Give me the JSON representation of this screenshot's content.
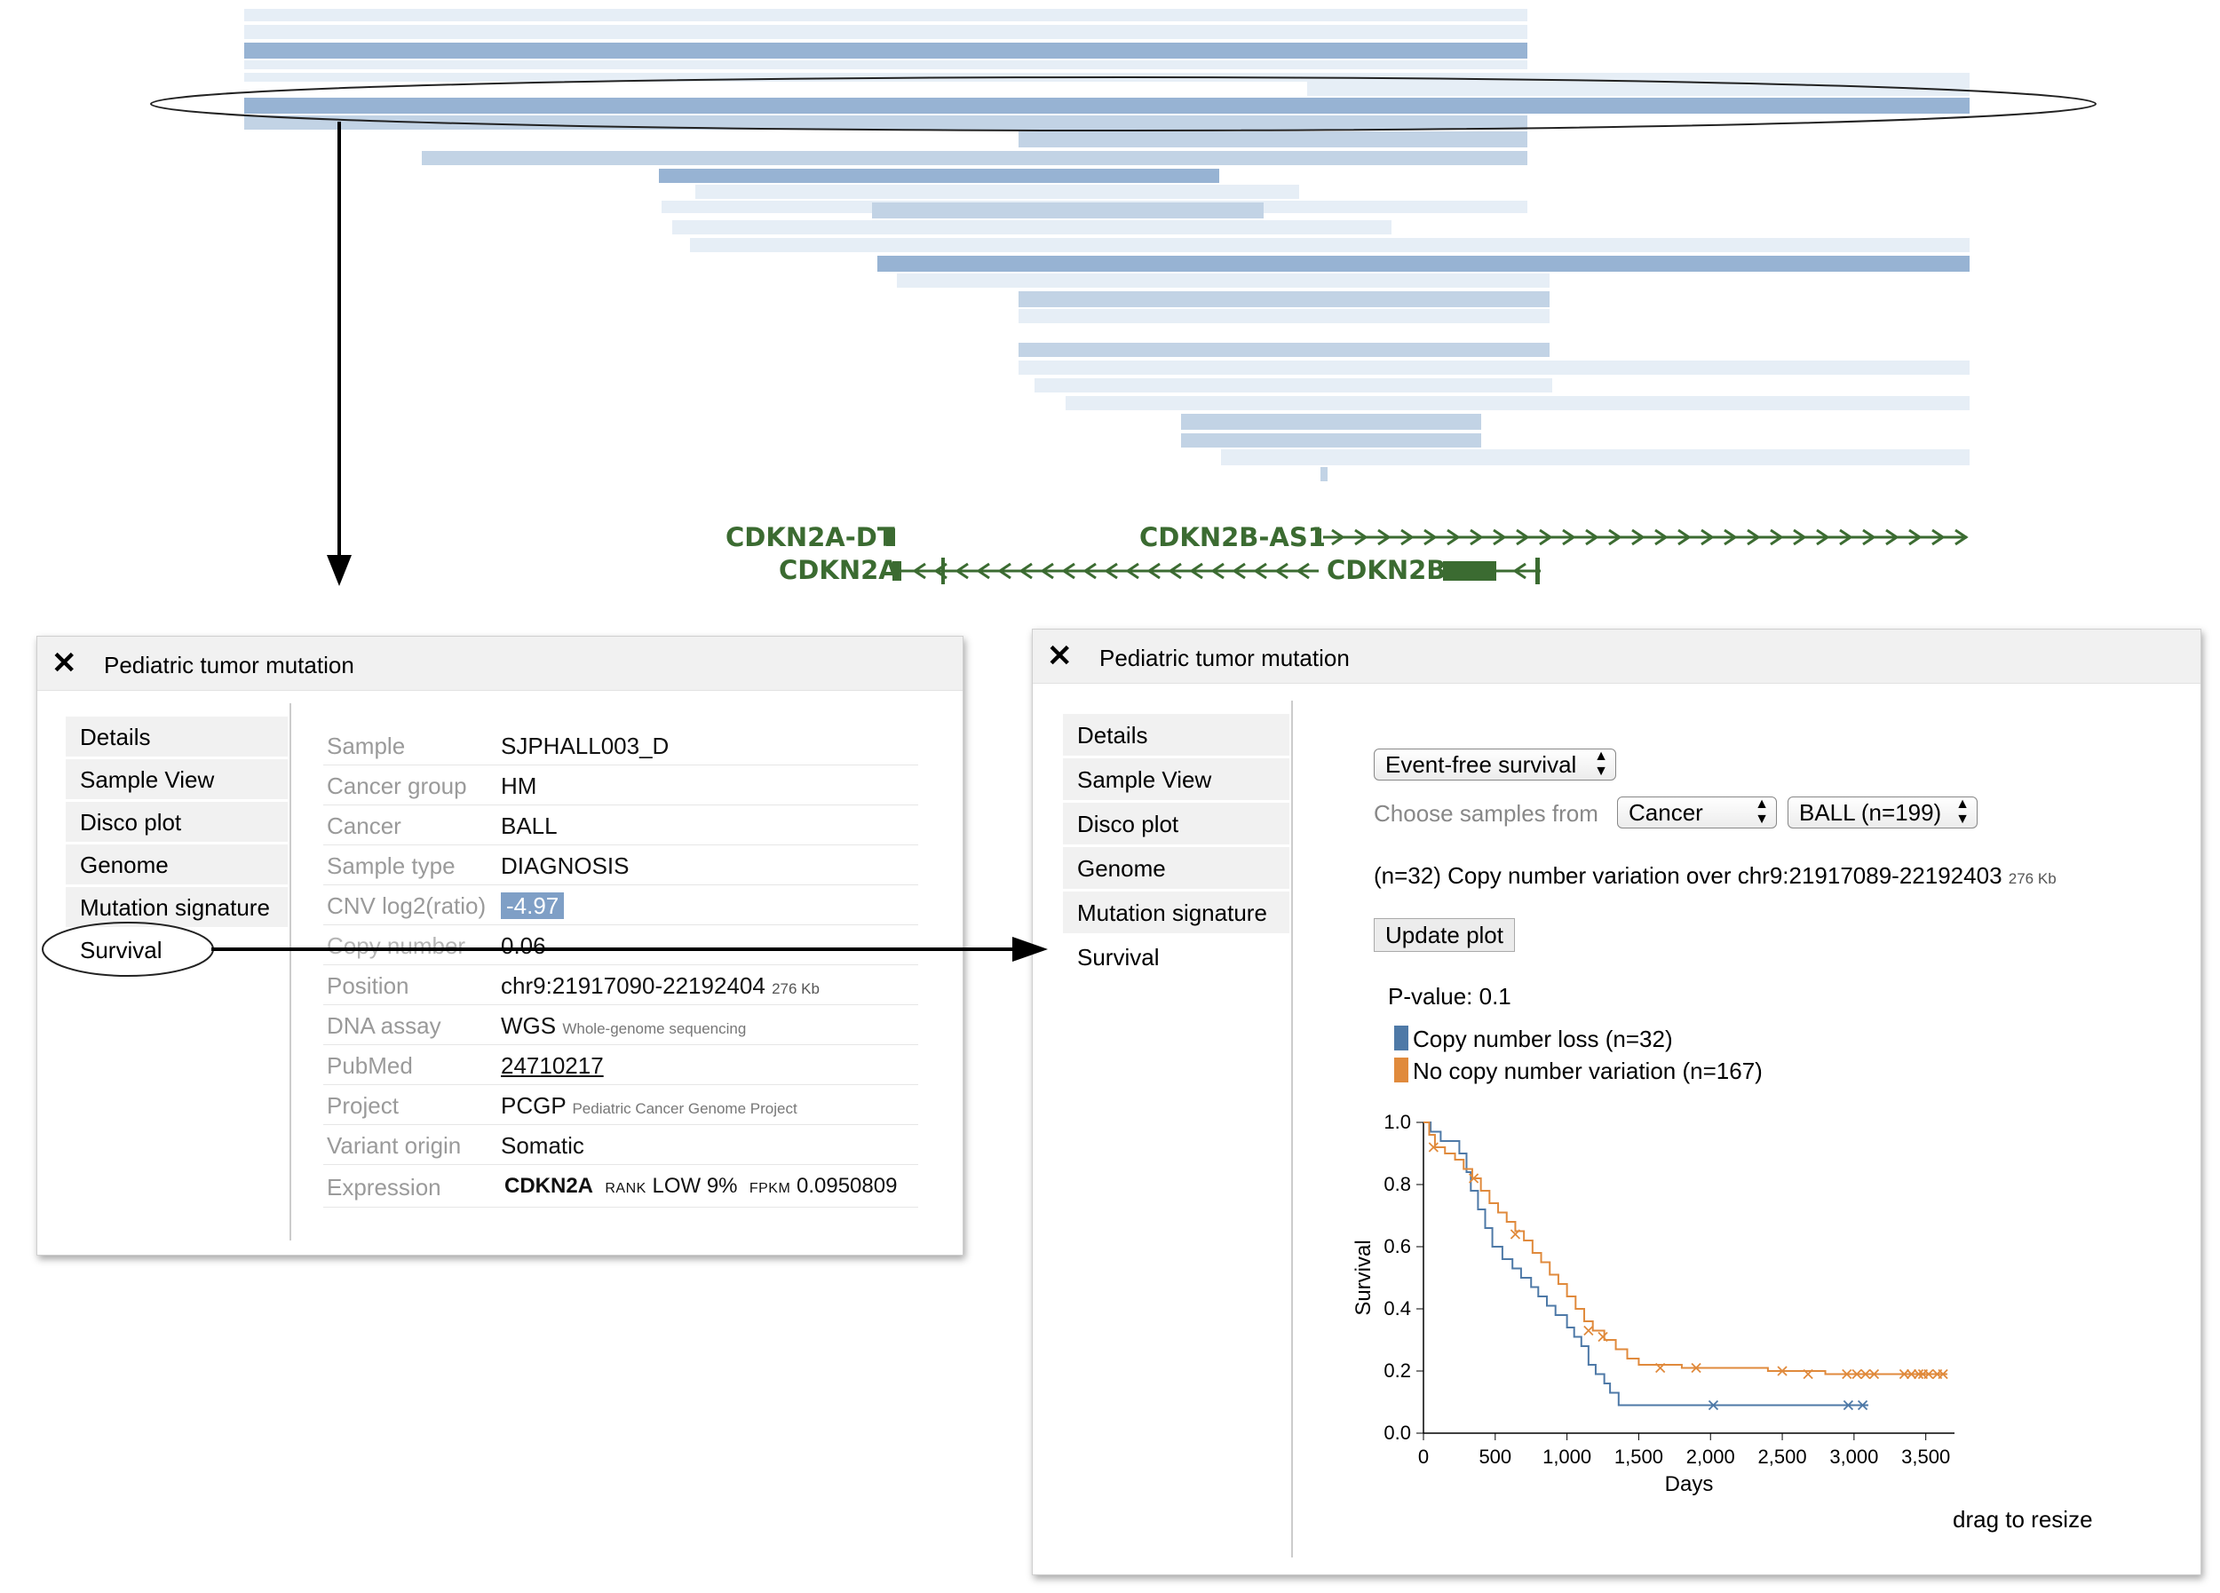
{
  "genes": {
    "cdkn2a_dt": "CDKN2A-DT",
    "cdkn2b_as1": "CDKN2B-AS1",
    "cdkn2a": "CDKN2A",
    "cdkn2b": "CDKN2B"
  },
  "colors": {
    "track_dark": "#97b3d3",
    "track_mid": "#c2d3e5",
    "track_light": "#e6eef6",
    "gene_green": "#3b6b31",
    "copy_number_loss": "#4e79a7",
    "no_cnv": "#e08a3c",
    "cnv_highlight": "#7f9fc6"
  },
  "left_panel": {
    "title": "Pediatric tumor mutation",
    "close_label": "✕",
    "tabs": [
      "Details",
      "Sample View",
      "Disco plot",
      "Genome",
      "Mutation signature",
      "Survival"
    ],
    "details": {
      "sample": {
        "label": "Sample",
        "value": "SJPHALL003_D"
      },
      "cancer_group": {
        "label": "Cancer group",
        "value": "HM"
      },
      "cancer": {
        "label": "Cancer",
        "value": "BALL"
      },
      "sample_type": {
        "label": "Sample type",
        "value": "DIAGNOSIS"
      },
      "cnv": {
        "label": "CNV log2(ratio)",
        "value": "-4.97"
      },
      "copy_number": {
        "label": "Copy number",
        "value": "0.06"
      },
      "position": {
        "label": "Position",
        "value": "chr9:21917090-22192404",
        "size": "276 Kb"
      },
      "dna_assay": {
        "label": "DNA assay",
        "value": "WGS",
        "note": "Whole-genome sequencing"
      },
      "pubmed": {
        "label": "PubMed",
        "value": "24710217"
      },
      "project": {
        "label": "Project",
        "value": "PCGP",
        "note": "Pediatric Cancer Genome Project"
      },
      "variant_origin": {
        "label": "Variant origin",
        "value": "Somatic"
      },
      "expression": {
        "label": "Expression",
        "gene": "CDKN2A",
        "rank_label": "RANK",
        "rank_value": "LOW 9%",
        "fpkm_label": "FPKM",
        "fpkm_value": "0.0950809"
      }
    }
  },
  "right_panel": {
    "title": "Pediatric tumor mutation",
    "close_label": "✕",
    "tabs": [
      "Details",
      "Sample View",
      "Disco plot",
      "Genome",
      "Mutation signature",
      "Survival"
    ],
    "survival_select": "Event-free survival",
    "choose_label": "Choose samples from",
    "cancer_select": "Cancer",
    "ball_select": "BALL (n=199)",
    "cnv_text": "(n=32) Copy number variation over chr9:21917089-22192403",
    "cnv_size": "276 Kb",
    "update_button": "Update plot",
    "pvalue": "P-value: 0.1",
    "legend": [
      {
        "label": "Copy number loss (n=32)",
        "color": "#4e79a7"
      },
      {
        "label": "No copy number variation (n=167)",
        "color": "#e08a3c"
      }
    ],
    "drag_resize": "drag to resize"
  },
  "chart_data": {
    "type": "line",
    "xlabel": "Days",
    "ylabel": "Survival",
    "xlim": [
      0,
      3700
    ],
    "ylim": [
      0,
      1.0
    ],
    "x_ticks": [
      0,
      500,
      1000,
      1500,
      2000,
      2500,
      3000,
      3500
    ],
    "x_tick_labels": [
      "0",
      "500",
      "1,000",
      "1,500",
      "2,000",
      "2,500",
      "3,000",
      "3,500"
    ],
    "y_ticks": [
      0.0,
      0.2,
      0.4,
      0.6,
      0.8,
      1.0
    ],
    "y_tick_labels": [
      "0.0",
      "0.2",
      "0.4",
      "0.6",
      "0.8",
      "1.0"
    ],
    "series": [
      {
        "name": "Copy number loss (n=32)",
        "color": "#4e79a7",
        "step_x": [
          0,
          50,
          120,
          250,
          300,
          330,
          380,
          430,
          480,
          550,
          620,
          680,
          750,
          800,
          860,
          920,
          1000,
          1050,
          1100,
          1150,
          1200,
          1260,
          1300,
          1360,
          3100
        ],
        "step_y": [
          1.0,
          0.97,
          0.94,
          0.9,
          0.84,
          0.78,
          0.72,
          0.66,
          0.6,
          0.56,
          0.53,
          0.5,
          0.47,
          0.44,
          0.41,
          0.38,
          0.34,
          0.31,
          0.28,
          0.22,
          0.19,
          0.16,
          0.13,
          0.09,
          0.09
        ],
        "censor_x": [
          2020,
          2960,
          3060
        ],
        "censor_y": [
          0.09,
          0.09,
          0.09
        ]
      },
      {
        "name": "No copy number variation (n=167)",
        "color": "#e08a3c",
        "step_x": [
          0,
          40,
          80,
          150,
          220,
          280,
          340,
          400,
          460,
          520,
          580,
          640,
          700,
          760,
          820,
          880,
          940,
          1000,
          1060,
          1120,
          1180,
          1260,
          1340,
          1420,
          1500,
          1800,
          2400,
          2800,
          3650
        ],
        "step_y": [
          1.0,
          0.96,
          0.92,
          0.9,
          0.88,
          0.85,
          0.82,
          0.78,
          0.74,
          0.71,
          0.68,
          0.65,
          0.62,
          0.58,
          0.55,
          0.51,
          0.48,
          0.44,
          0.4,
          0.36,
          0.33,
          0.3,
          0.27,
          0.24,
          0.22,
          0.21,
          0.2,
          0.19,
          0.19
        ],
        "censor_x": [
          70,
          350,
          640,
          1150,
          1250,
          1650,
          1900,
          2500,
          2680,
          2950,
          3020,
          3080,
          3140,
          3350,
          3400,
          3450,
          3480,
          3520,
          3580,
          3620
        ],
        "censor_y": [
          0.92,
          0.82,
          0.64,
          0.33,
          0.31,
          0.21,
          0.21,
          0.2,
          0.19,
          0.19,
          0.19,
          0.19,
          0.19,
          0.19,
          0.19,
          0.19,
          0.19,
          0.19,
          0.19,
          0.19
        ]
      }
    ]
  }
}
